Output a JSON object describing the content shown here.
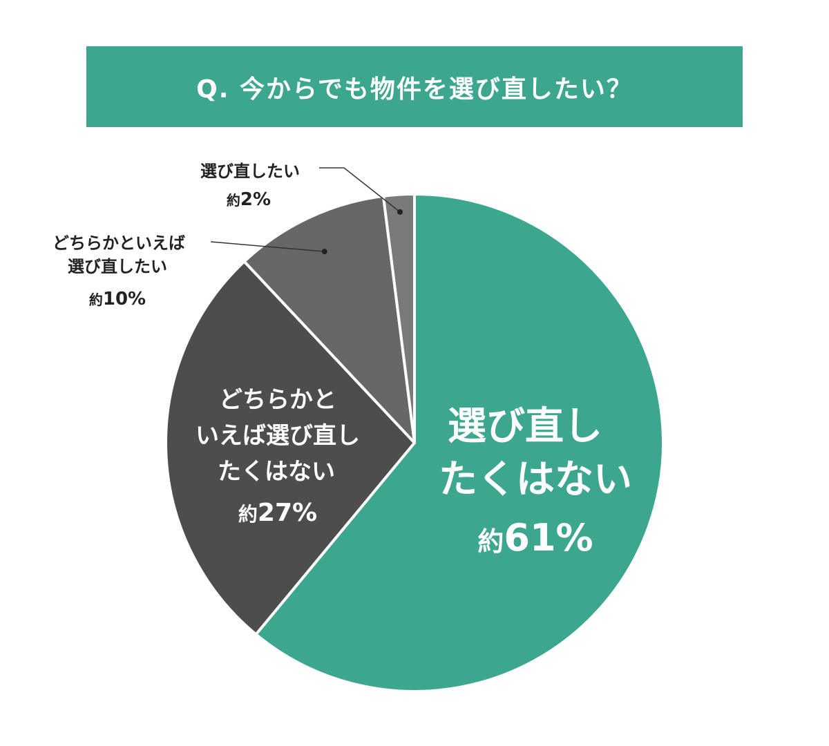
{
  "chart_data": {
    "type": "pie",
    "title": "Q. 今からでも物件を選び直したい？",
    "slices": [
      {
        "label_lines": [
          "選び直し",
          "たくはない"
        ],
        "pct": "約61%",
        "prefix": "約",
        "num": "61%",
        "value": 61,
        "color": "#3ca78e"
      },
      {
        "label_lines": [
          "どちらかと",
          "いえば選び直し",
          "たくはない"
        ],
        "pct": "約27%",
        "prefix": "約",
        "num": "27%",
        "value": 27,
        "color": "#4d4d4d"
      },
      {
        "label_lines": [
          "どちらかといえば",
          "選び直したい"
        ],
        "pct": "約10%",
        "prefix": "約",
        "num": "10%",
        "value": 10,
        "color": "#676767"
      },
      {
        "label_lines": [
          "選び直したい"
        ],
        "pct": "約2%",
        "prefix": "約",
        "num": "2%",
        "value": 2,
        "color": "#7a7a7a"
      }
    ],
    "legend": "none"
  },
  "colors": {
    "accent": "#3ca78e",
    "separator": "#ffffff",
    "leader": "#333333"
  }
}
